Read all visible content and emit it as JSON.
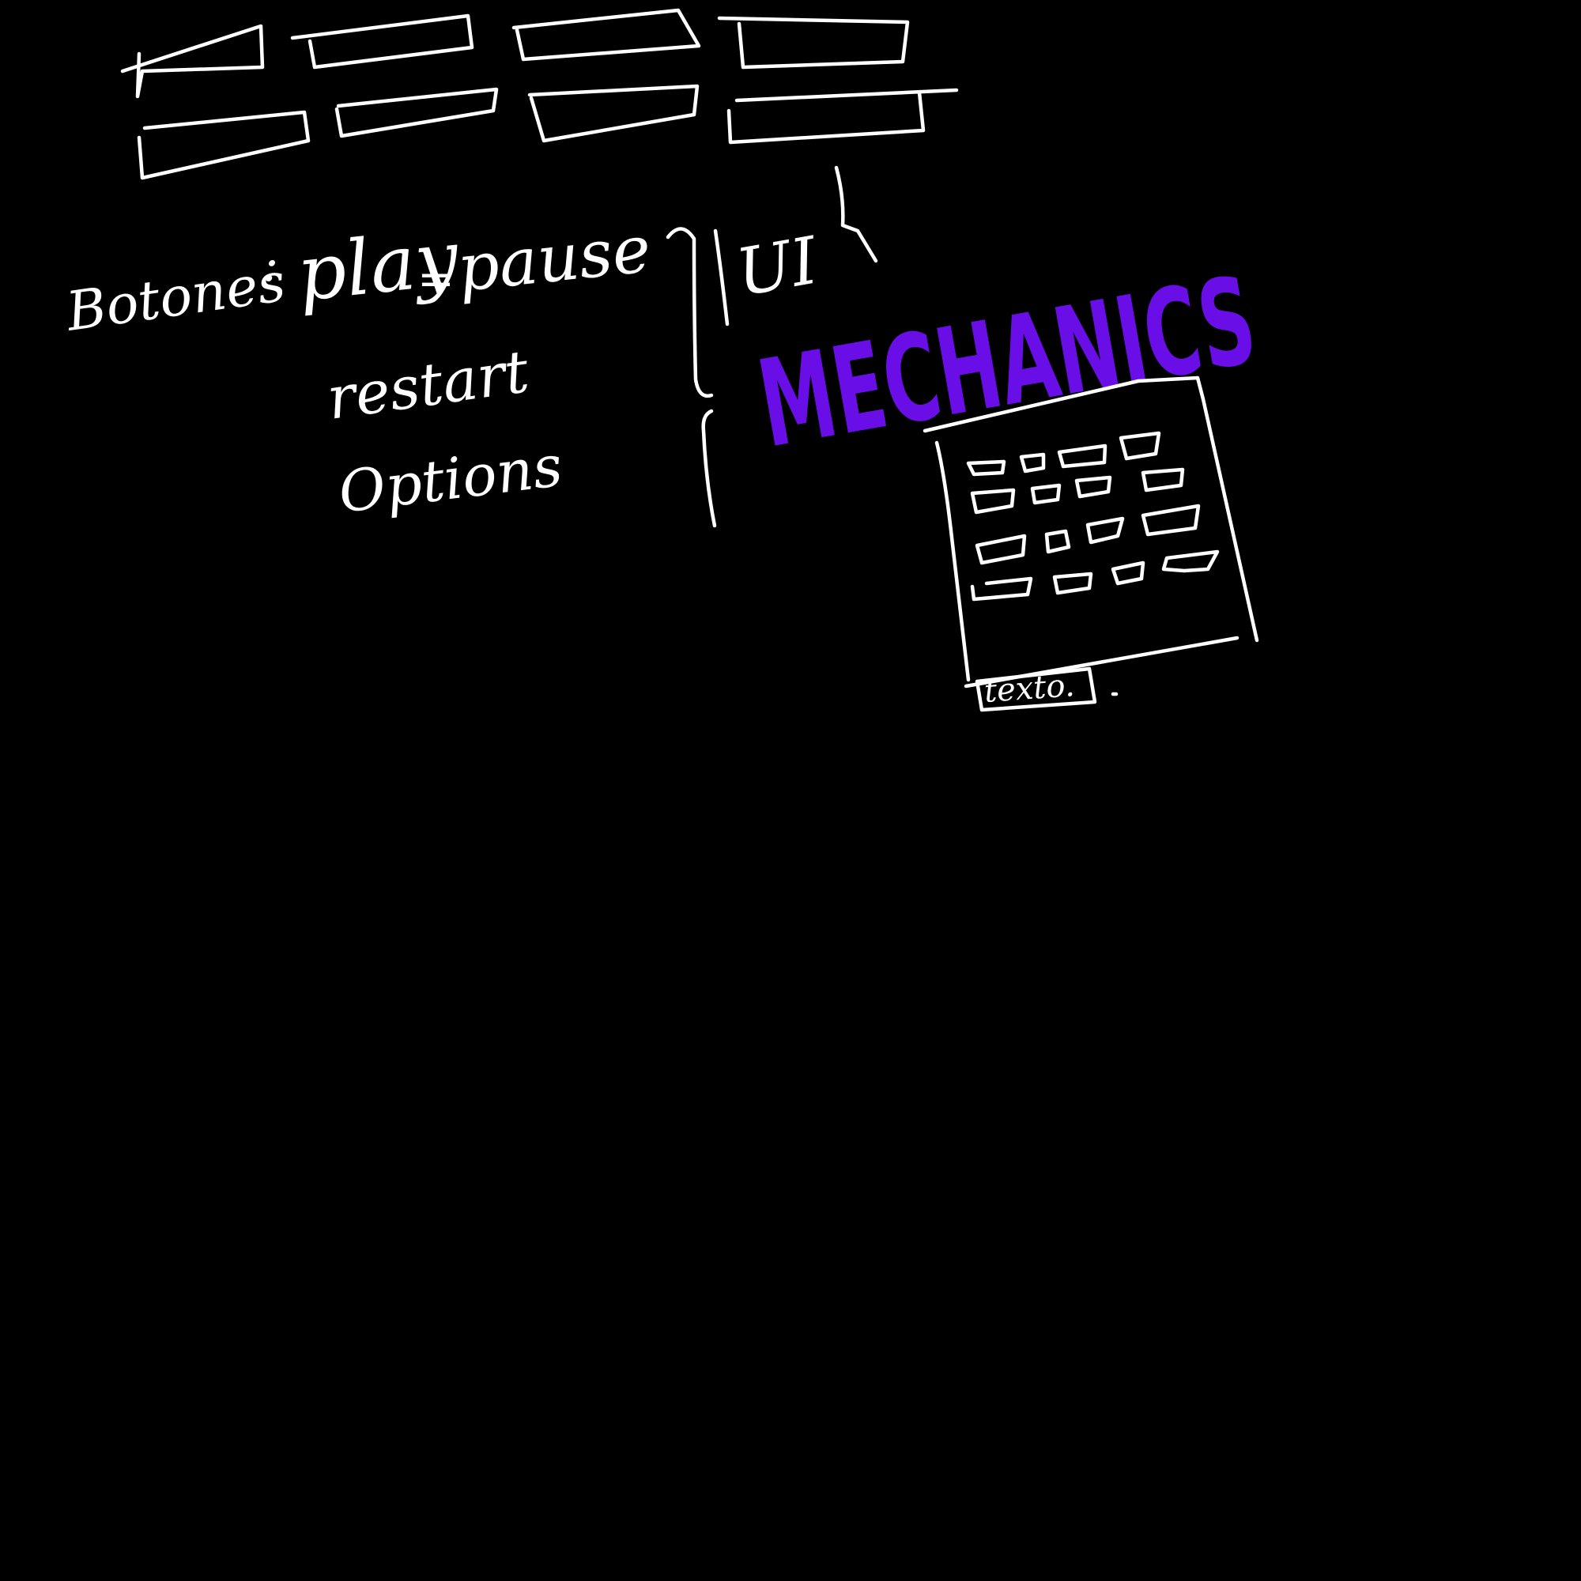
{
  "colors": {
    "background": "#000000",
    "ink": "#ffffff",
    "accent": "#6a0ee8"
  },
  "notes": {
    "botones": "Botones",
    "separator_1": ":",
    "play": "play",
    "separator_2": "=",
    "pause": "pause",
    "restart": "restart",
    "options": "Options",
    "ui": "UI",
    "mechanics": "MECHANICS",
    "texto": "texto."
  }
}
